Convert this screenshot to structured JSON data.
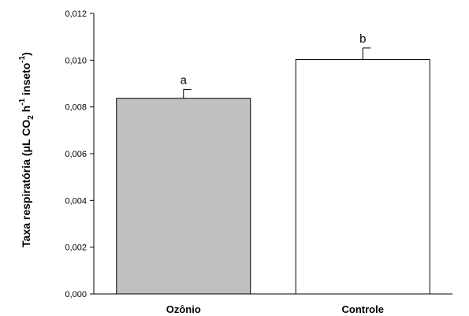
{
  "chart_data": {
    "type": "bar",
    "title": "",
    "xlabel": "",
    "ylabel": {
      "text": "Taxa respiratória (μL CO2 h-1 inseto-1)",
      "prefix": "Taxa respiratória (μL CO",
      "co2_subscript": "2",
      "after_co2": " h",
      "h_superscript": "-1",
      "after_h": "  inseto",
      "inseto_superscript": "-1",
      "suffix": ")"
    },
    "ylim": [
      0,
      0.012
    ],
    "yticks": [
      0,
      0.002,
      0.004,
      0.006,
      0.008,
      0.01,
      0.012
    ],
    "ytick_labels": [
      "0,000",
      "0,002",
      "0,004",
      "0,006",
      "0,008",
      "0,010",
      "0,012"
    ],
    "categories": [
      "Ozônio",
      "Controle"
    ],
    "values": [
      0.00837,
      0.01003
    ],
    "errors": [
      0.00038,
      0.00049
    ],
    "significance_letters": [
      "a",
      "b"
    ],
    "colors": {
      "Ozônio": "#c0c0c0",
      "Controle": "#ffffff",
      "edge": "#000000"
    },
    "grid": false,
    "legend": "none"
  }
}
